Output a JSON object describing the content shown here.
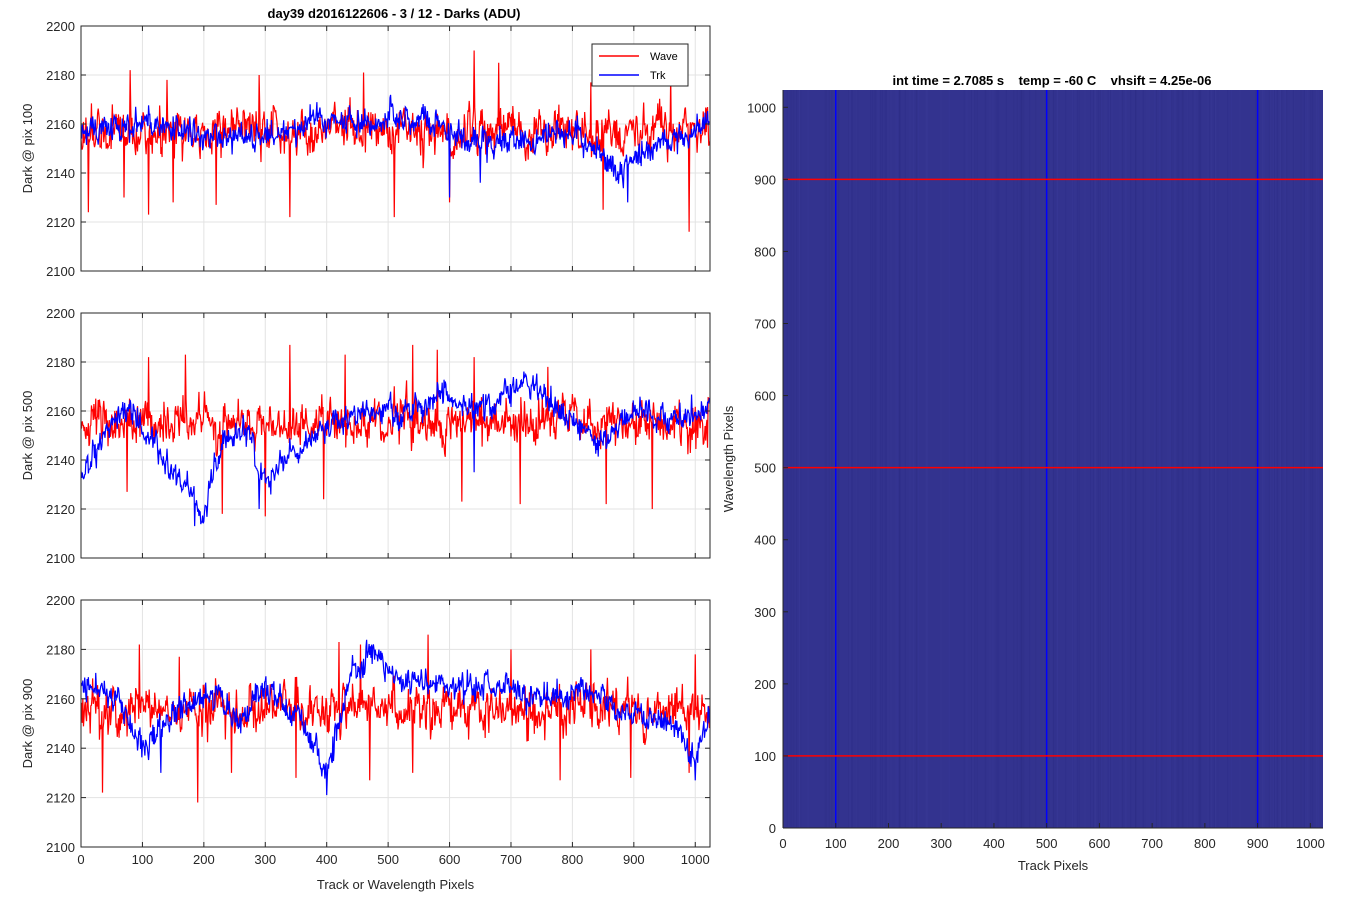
{
  "figure": {
    "title": "day39 d2016122606 - 3 / 12 - Darks (ADU)",
    "image_title": "int time = 2.7085 s    temp = -60 C    vhsift = 4.25e-06"
  },
  "chart_data": [
    {
      "type": "line",
      "title": "day39 d2016122606 - 3 / 12 - Darks (ADU)",
      "xlabel": "",
      "ylabel": "Dark @ pix 100",
      "xlim": [
        0,
        1024
      ],
      "ylim": [
        2100,
        2200
      ],
      "xticks": [
        0,
        100,
        200,
        300,
        400,
        500,
        600,
        700,
        800,
        900,
        1000
      ],
      "yticks": [
        2100,
        2120,
        2140,
        2160,
        2180,
        2200
      ],
      "grid": true,
      "legend": {
        "position": "top-right",
        "entries": [
          "Wave",
          "Trk"
        ]
      },
      "series": [
        {
          "name": "Wave",
          "color": "#ff0000",
          "n": 1024,
          "mean": 2157,
          "spread": 8,
          "seed": 11,
          "dips": [
            [
              12,
              2124
            ],
            [
              70,
              2130
            ],
            [
              110,
              2123
            ],
            [
              150,
              2128
            ],
            [
              220,
              2127
            ],
            [
              340,
              2122
            ],
            [
              510,
              2122
            ],
            [
              600,
              2128
            ],
            [
              850,
              2125
            ],
            [
              990,
              2116
            ]
          ],
          "peaks": [
            [
              80,
              2182
            ],
            [
              140,
              2178
            ],
            [
              290,
              2180
            ],
            [
              460,
              2181
            ],
            [
              640,
              2190
            ],
            [
              680,
              2185
            ],
            [
              830,
              2177
            ],
            [
              960,
              2180
            ]
          ]
        },
        {
          "name": "Trk",
          "color": "#0000ff",
          "n": 1024,
          "mean": 2158,
          "spread": 5,
          "seed": 12,
          "trend": [
            [
              0,
              2158
            ],
            [
              100,
              2160
            ],
            [
              200,
              2155
            ],
            [
              300,
              2154
            ],
            [
              380,
              2162
            ],
            [
              480,
              2160
            ],
            [
              560,
              2162
            ],
            [
              620,
              2155
            ],
            [
              700,
              2152
            ],
            [
              800,
              2157
            ],
            [
              880,
              2140
            ],
            [
              930,
              2152
            ],
            [
              1024,
              2160
            ]
          ],
          "dips": [
            [
              600,
              2130
            ],
            [
              890,
              2128
            ],
            [
              650,
              2136
            ]
          ]
        }
      ]
    },
    {
      "type": "line",
      "title": "",
      "xlabel": "",
      "ylabel": "Dark @ pix 500",
      "xlim": [
        0,
        1024
      ],
      "ylim": [
        2100,
        2200
      ],
      "xticks": [
        0,
        100,
        200,
        300,
        400,
        500,
        600,
        700,
        800,
        900,
        1000
      ],
      "yticks": [
        2100,
        2120,
        2140,
        2160,
        2180,
        2200
      ],
      "grid": true,
      "series": [
        {
          "name": "Wave",
          "color": "#ff0000",
          "n": 1024,
          "mean": 2155,
          "spread": 8,
          "seed": 21,
          "dips": [
            [
              75,
              2127
            ],
            [
              230,
              2118
            ],
            [
              300,
              2117
            ],
            [
              395,
              2124
            ],
            [
              620,
              2123
            ],
            [
              715,
              2122
            ],
            [
              855,
              2122
            ],
            [
              930,
              2120
            ],
            [
              1020,
              2145
            ]
          ],
          "peaks": [
            [
              110,
              2182
            ],
            [
              170,
              2183
            ],
            [
              340,
              2187
            ],
            [
              430,
              2183
            ],
            [
              540,
              2187
            ],
            [
              580,
              2185
            ],
            [
              640,
              2182
            ],
            [
              760,
              2178
            ]
          ]
        },
        {
          "name": "Trk",
          "color": "#0000ff",
          "n": 1024,
          "mean": 2155,
          "spread": 5,
          "seed": 22,
          "trend": [
            [
              0,
              2133
            ],
            [
              30,
              2148
            ],
            [
              80,
              2160
            ],
            [
              120,
              2145
            ],
            [
              180,
              2126
            ],
            [
              200,
              2118
            ],
            [
              230,
              2148
            ],
            [
              270,
              2152
            ],
            [
              300,
              2130
            ],
            [
              340,
              2143
            ],
            [
              400,
              2152
            ],
            [
              460,
              2162
            ],
            [
              520,
              2158
            ],
            [
              580,
              2168
            ],
            [
              640,
              2160
            ],
            [
              720,
              2172
            ],
            [
              780,
              2160
            ],
            [
              840,
              2147
            ],
            [
              900,
              2160
            ],
            [
              960,
              2157
            ],
            [
              1024,
              2160
            ]
          ],
          "dips": [
            [
              185,
              2113
            ],
            [
              290,
              2120
            ],
            [
              640,
              2135
            ]
          ]
        }
      ]
    },
    {
      "type": "line",
      "title": "",
      "xlabel": "Track or Wavelength Pixels",
      "ylabel": "Dark @ pix 900",
      "xlim": [
        0,
        1024
      ],
      "ylim": [
        2100,
        2200
      ],
      "xticks": [
        0,
        100,
        200,
        300,
        400,
        500,
        600,
        700,
        800,
        900,
        1000
      ],
      "yticks": [
        2100,
        2120,
        2140,
        2160,
        2180,
        2200
      ],
      "grid": true,
      "series": [
        {
          "name": "Wave",
          "color": "#ff0000",
          "n": 1024,
          "mean": 2156,
          "spread": 8,
          "seed": 31,
          "dips": [
            [
              35,
              2122
            ],
            [
              190,
              2118
            ],
            [
              245,
              2130
            ],
            [
              350,
              2128
            ],
            [
              470,
              2127
            ],
            [
              540,
              2130
            ],
            [
              780,
              2127
            ],
            [
              895,
              2128
            ],
            [
              990,
              2130
            ]
          ],
          "peaks": [
            [
              95,
              2182
            ],
            [
              160,
              2177
            ],
            [
              420,
              2183
            ],
            [
              455,
              2182
            ],
            [
              565,
              2186
            ],
            [
              700,
              2180
            ],
            [
              830,
              2180
            ],
            [
              1000,
              2178
            ]
          ]
        },
        {
          "name": "Trk",
          "color": "#0000ff",
          "n": 1024,
          "mean": 2158,
          "spread": 5,
          "seed": 32,
          "trend": [
            [
              0,
              2165
            ],
            [
              60,
              2160
            ],
            [
              100,
              2140
            ],
            [
              160,
              2155
            ],
            [
              220,
              2162
            ],
            [
              260,
              2150
            ],
            [
              300,
              2165
            ],
            [
              360,
              2150
            ],
            [
              400,
              2130
            ],
            [
              440,
              2170
            ],
            [
              480,
              2178
            ],
            [
              520,
              2168
            ],
            [
              600,
              2165
            ],
            [
              700,
              2165
            ],
            [
              760,
              2160
            ],
            [
              820,
              2165
            ],
            [
              880,
              2155
            ],
            [
              960,
              2150
            ],
            [
              1000,
              2135
            ],
            [
              1024,
              2155
            ]
          ],
          "dips": [
            [
              400,
              2121
            ],
            [
              1000,
              2127
            ],
            [
              130,
              2130
            ]
          ]
        }
      ]
    },
    {
      "type": "heatmap",
      "title": "int time = 2.7085 s    temp = -60 C    vhsift = 4.25e-06",
      "xlabel": "Track Pixels",
      "ylabel": "Wavelength Pixels",
      "xlim": [
        0,
        1024
      ],
      "ylim": [
        0,
        1024
      ],
      "xticks": [
        0,
        100,
        200,
        300,
        400,
        500,
        600,
        700,
        800,
        900,
        1000
      ],
      "yticks": [
        0,
        100,
        200,
        300,
        400,
        500,
        600,
        700,
        800,
        900,
        1000
      ],
      "grid": false,
      "fill_color": "#33338f",
      "vertical_lines": {
        "color": "#0000ff",
        "x": [
          100,
          500,
          900
        ]
      },
      "horizontal_lines": {
        "color": "#ff0000",
        "y": [
          100,
          500,
          900
        ]
      }
    }
  ]
}
